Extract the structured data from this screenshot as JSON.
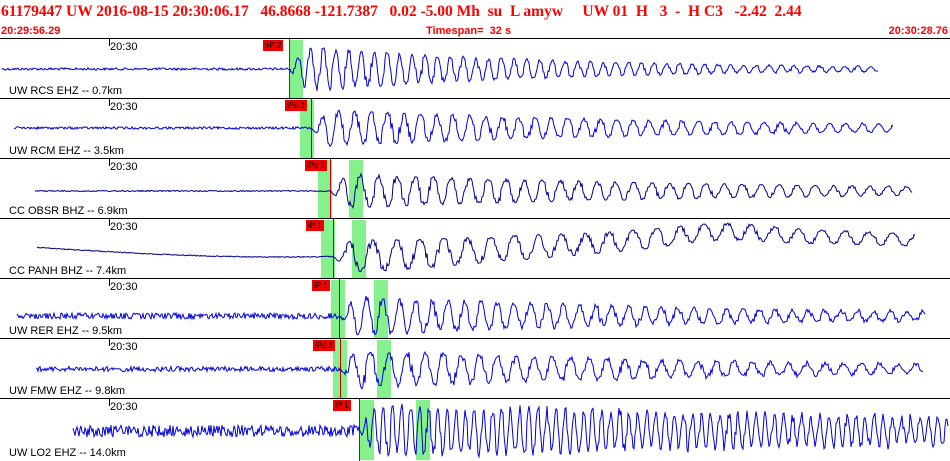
{
  "header": {
    "title": "61179447 UW 2016-08-15 20:30:06.17   46.8668 -121.7387   0.02 -5.00 Mh  su  L amyw     UW 01  H   3  -  H C3   -2.42  2.44",
    "start_time": "20:29:56.29",
    "timespan": "Timespan=  32 s",
    "end_time": "20:30:28.76"
  },
  "colors": {
    "header_text": "#ff0000",
    "trace": "#0000cc",
    "pick": "#ee0000",
    "window": "#86f08c"
  },
  "traces": [
    {
      "label": "UW RCS EHZ -- 0.7km",
      "tick": "20:30",
      "pick": "eP 2",
      "color": "#0000dd"
    },
    {
      "label": "UW RCM EHZ -- 3.5km",
      "tick": "20:30",
      "pick": "iPd 1",
      "color": "#0000dd"
    },
    {
      "label": "CC OBSR BHZ -- 6.9km",
      "tick": "20:30",
      "pick": "iPd 1",
      "color": "#00008b"
    },
    {
      "label": "CC PANH BHZ -- 7.4km",
      "tick": "20:30",
      "pick": "iP 1",
      "color": "#00008b"
    },
    {
      "label": "UW RER EHZ -- 9.5km",
      "tick": "20:30",
      "pick": "iP 1",
      "color": "#0000dd"
    },
    {
      "label": "UW FMW EHZ -- 9.8km",
      "tick": "20:30",
      "pick": "iPd 1",
      "color": "#0000dd"
    },
    {
      "label": "UW LO2 EHZ -- 14.0km",
      "tick": "20:30",
      "pick": "iP 1",
      "color": "#0000dd"
    }
  ]
}
